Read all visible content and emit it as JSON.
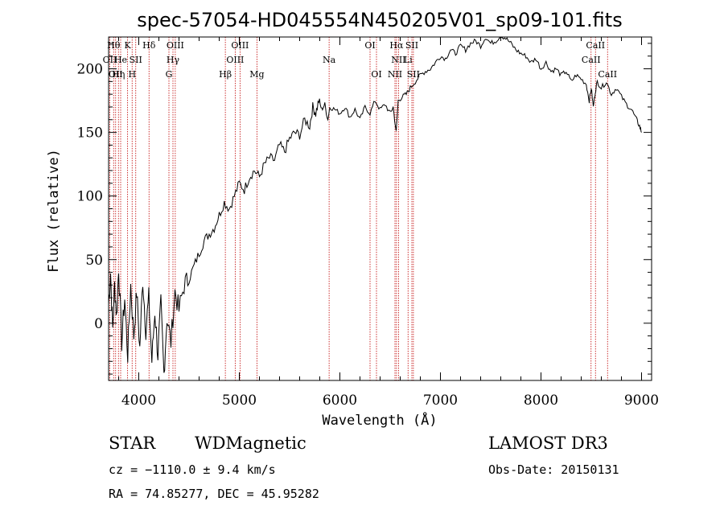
{
  "chart_data": {
    "type": "line",
    "title": "spec-57054-HD045554N450205V01_sp09-101.fits",
    "xlabel": "Wavelength (Å)",
    "ylabel": "Flux (relative)",
    "xlim": [
      3700,
      9100
    ],
    "ylim": [
      -45,
      225
    ],
    "xticks": [
      4000,
      5000,
      6000,
      7000,
      8000,
      9000
    ],
    "yticks": [
      0,
      50,
      100,
      150,
      200
    ],
    "grid": false,
    "series": [
      {
        "name": "",
        "x": [
          3700,
          3720,
          3740,
          3760,
          3780,
          3800,
          3830,
          3860,
          3890,
          3920,
          3950,
          3980,
          4010,
          4040,
          4070,
          4100,
          4130,
          4160,
          4190,
          4220,
          4250,
          4280,
          4320,
          4360,
          4400,
          4450,
          4500,
          4550,
          4600,
          4650,
          4700,
          4750,
          4800,
          4850,
          4900,
          4950,
          5000,
          5050,
          5100,
          5150,
          5200,
          5250,
          5300,
          5350,
          5400,
          5450,
          5500,
          5550,
          5600,
          5650,
          5700,
          5730,
          5760,
          5790,
          5820,
          5850,
          5880,
          5900,
          5950,
          6000,
          6050,
          6100,
          6150,
          6200,
          6250,
          6300,
          6350,
          6400,
          6450,
          6500,
          6530,
          6560,
          6580,
          6620,
          6660,
          6700,
          6750,
          6800,
          6850,
          6900,
          6950,
          7000,
          7050,
          7100,
          7150,
          7200,
          7250,
          7300,
          7350,
          7400,
          7450,
          7500,
          7550,
          7600,
          7650,
          7700,
          7750,
          7800,
          7850,
          7900,
          7950,
          8000,
          8050,
          8100,
          8150,
          8200,
          8250,
          8300,
          8350,
          8400,
          8450,
          8480,
          8500,
          8520,
          8540,
          8560,
          8600,
          8650,
          8700,
          8750,
          8800,
          8850,
          8900,
          8950,
          8980,
          9000
        ],
        "y": [
          15,
          40,
          -5,
          30,
          5,
          45,
          -15,
          20,
          -25,
          30,
          -10,
          25,
          -20,
          35,
          -5,
          20,
          -30,
          10,
          -25,
          15,
          -40,
          5,
          -15,
          25,
          10,
          30,
          35,
          45,
          55,
          65,
          70,
          75,
          85,
          95,
          90,
          100,
          110,
          105,
          115,
          120,
          115,
          125,
          130,
          128,
          140,
          135,
          145,
          150,
          148,
          160,
          155,
          170,
          165,
          175,
          168,
          172,
          160,
          170,
          168,
          165,
          170,
          162,
          168,
          160,
          170,
          165,
          175,
          168,
          172,
          165,
          170,
          150,
          175,
          178,
          180,
          185,
          190,
          195,
          198,
          200,
          205,
          210,
          208,
          215,
          212,
          218,
          215,
          220,
          222,
          218,
          225,
          220,
          222,
          226,
          224,
          220,
          215,
          212,
          210,
          205,
          208,
          200,
          205,
          198,
          200,
          195,
          198,
          190,
          195,
          192,
          188,
          175,
          185,
          170,
          182,
          190,
          185,
          190,
          180,
          185,
          178,
          172,
          168,
          160,
          155,
          150
        ]
      }
    ],
    "line_markers": [
      {
        "x": 3712,
        "label": "OII",
        "row": 2
      },
      {
        "x": 3750,
        "label": "Hθ",
        "row": 1
      },
      {
        "x": 3770,
        "label": "OII",
        "row": 3
      },
      {
        "x": 3798,
        "label": "Hη",
        "row": 3
      },
      {
        "x": 3820,
        "label": "He",
        "row": 2
      },
      {
        "x": 3889,
        "label": "K",
        "row": 1
      },
      {
        "x": 3934,
        "label": "H",
        "row": 3
      },
      {
        "x": 3970,
        "label": "SII",
        "row": 2
      },
      {
        "x": 4102,
        "label": "Hδ",
        "row": 1
      },
      {
        "x": 4300,
        "label": "G",
        "row": 3
      },
      {
        "x": 4340,
        "label": "Hγ",
        "row": 2
      },
      {
        "x": 4363,
        "label": "OIII",
        "row": 1
      },
      {
        "x": 4861,
        "label": "Hβ",
        "row": 3
      },
      {
        "x": 4959,
        "label": "OIII",
        "row": 2
      },
      {
        "x": 5007,
        "label": "OIII",
        "row": 1
      },
      {
        "x": 5175,
        "label": "Mg",
        "row": 3
      },
      {
        "x": 5893,
        "label": "Na",
        "row": 2
      },
      {
        "x": 6300,
        "label": "OI",
        "row": 1
      },
      {
        "x": 6364,
        "label": "OI",
        "row": 3
      },
      {
        "x": 6548,
        "label": "NII",
        "row": 3
      },
      {
        "x": 6563,
        "label": "Hα",
        "row": 1
      },
      {
        "x": 6583,
        "label": "NII",
        "row": 2
      },
      {
        "x": 6678,
        "label": "Li",
        "row": 2
      },
      {
        "x": 6716,
        "label": "SII",
        "row": 1
      },
      {
        "x": 6731,
        "label": "SII",
        "row": 3
      },
      {
        "x": 8498,
        "label": "CaII",
        "row": 2
      },
      {
        "x": 8542,
        "label": "CaII",
        "row": 1
      },
      {
        "x": 8662,
        "label": "CaII",
        "row": 3
      }
    ]
  },
  "info": {
    "object_class": "STAR",
    "subclass": "WDMagnetic",
    "survey": "LAMOST DR3",
    "cz": "cz = −1110.0 ± 9.4 km/s",
    "obs_date": "Obs-Date: 20150131",
    "coords": "RA =  74.85277, DEC =  45.95282"
  },
  "colors": {
    "spectrum": "#000000",
    "marker_lines": "#c00000",
    "axes": "#000000"
  }
}
